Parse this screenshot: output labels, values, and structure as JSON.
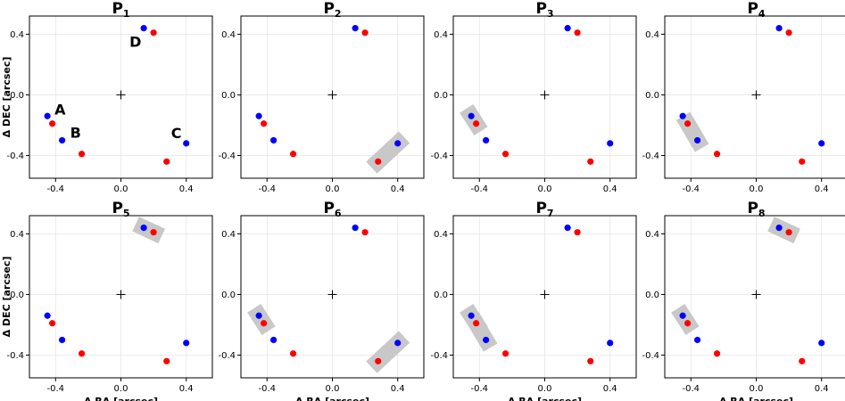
{
  "chart_data": {
    "type": "scatter",
    "xlabel": "Δ RA [arcsec]",
    "ylabel": "Δ DEC [arcsec]",
    "xlim": [
      -0.56,
      0.56
    ],
    "ylim": [
      -0.55,
      0.52
    ],
    "xticks": [
      "-0.4",
      "0.0",
      "0.4"
    ],
    "yticks": [
      "0.4",
      "0.0",
      "-0.4"
    ],
    "grid": true,
    "series_colors": {
      "blue": "#0000ff",
      "red": "#ff0000"
    },
    "points": {
      "A_blue": {
        "x": -0.45,
        "y": -0.14,
        "color": "blue"
      },
      "A_red": {
        "x": -0.42,
        "y": -0.19,
        "color": "red"
      },
      "B_blue": {
        "x": -0.36,
        "y": -0.3,
        "color": "blue"
      },
      "B_red": {
        "x": -0.24,
        "y": -0.39,
        "color": "red"
      },
      "C_blue": {
        "x": 0.4,
        "y": -0.32,
        "color": "blue"
      },
      "C_red": {
        "x": 0.28,
        "y": -0.44,
        "color": "red"
      },
      "D_blue": {
        "x": 0.14,
        "y": 0.44,
        "color": "blue"
      },
      "D_red": {
        "x": 0.2,
        "y": 0.41,
        "color": "red"
      }
    },
    "labels": {
      "A": "A",
      "B": "B",
      "C": "C",
      "D": "D"
    },
    "center_marker": "+",
    "panels": [
      {
        "title": "P",
        "sub": "1",
        "highlight": [],
        "labels": true
      },
      {
        "title": "P",
        "sub": "2",
        "highlight": [
          [
            "C_red",
            "C_blue"
          ]
        ]
      },
      {
        "title": "P",
        "sub": "3",
        "highlight": [
          [
            "A_red",
            "A_blue"
          ]
        ]
      },
      {
        "title": "P",
        "sub": "4",
        "highlight": [
          [
            "B_blue",
            "A_red"
          ]
        ]
      },
      {
        "title": "P",
        "sub": "5",
        "highlight": [
          [
            "D_red",
            "D_blue"
          ]
        ]
      },
      {
        "title": "P",
        "sub": "6",
        "highlight": [
          [
            "A_red",
            "A_blue"
          ],
          [
            "C_red",
            "C_blue"
          ]
        ]
      },
      {
        "title": "P",
        "sub": "7",
        "highlight": [
          [
            "A_red",
            "A_blue"
          ],
          [
            "B_blue",
            "A_red"
          ]
        ]
      },
      {
        "title": "P",
        "sub": "8",
        "highlight": [
          [
            "A_red",
            "A_blue"
          ],
          [
            "D_red",
            "D_blue"
          ]
        ]
      }
    ]
  }
}
